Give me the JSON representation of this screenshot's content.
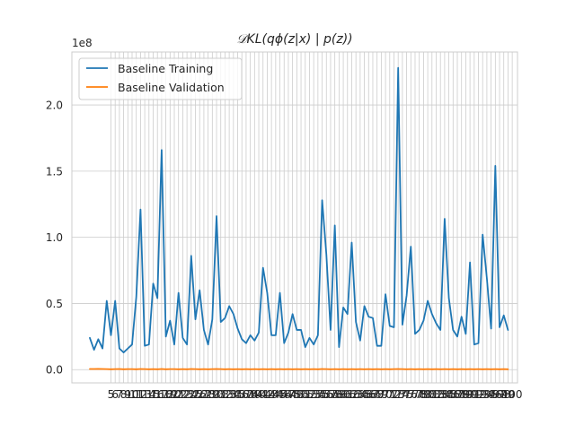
{
  "chart_data": {
    "type": "line",
    "title": "𝒟KL(qϕ(z|x) | p(z))",
    "xlabel": "",
    "ylabel": "",
    "y_scale_label": "1e8",
    "grid": true,
    "legend_position": "upper-left",
    "ylim": [
      -10000000,
      240000000
    ],
    "xlim": [
      -4.25,
      101.25
    ],
    "yticks": [
      0,
      50000000,
      100000000,
      150000000,
      200000000
    ],
    "ytick_labels": [
      "0.0",
      "0.5",
      "1.0",
      "1.5",
      "2.0"
    ],
    "xticks": [
      5,
      6,
      7,
      8,
      9,
      10,
      11,
      12,
      13,
      14,
      15,
      16,
      17,
      18,
      19,
      20,
      21,
      22,
      23,
      24,
      25,
      26,
      27,
      28,
      29,
      30,
      31,
      32,
      33,
      34,
      35,
      36,
      37,
      38,
      39,
      40,
      41,
      42,
      43,
      44,
      45,
      46,
      47,
      48,
      49,
      50,
      51,
      52,
      53,
      54,
      55,
      56,
      57,
      58,
      59,
      60,
      61,
      62,
      63,
      64,
      65,
      66,
      67,
      68,
      69,
      70,
      71,
      72,
      73,
      74,
      75,
      76,
      77,
      78,
      79,
      80,
      81,
      82,
      83,
      84,
      85,
      86,
      87,
      88,
      89,
      90,
      91,
      92,
      93,
      94,
      95,
      96,
      97,
      98,
      99,
      100
    ],
    "x": [
      0,
      1,
      2,
      3,
      4,
      5,
      6,
      7,
      8,
      9,
      10,
      11,
      12,
      13,
      14,
      15,
      16,
      17,
      18,
      19,
      20,
      21,
      22,
      23,
      24,
      25,
      26,
      27,
      28,
      29,
      30,
      31,
      32,
      33,
      34,
      35,
      36,
      37,
      38,
      39,
      40,
      41,
      42,
      43,
      44,
      45,
      46,
      47,
      48,
      49,
      50,
      51,
      52,
      53,
      54,
      55,
      56,
      57,
      58,
      59,
      60,
      61,
      62,
      63,
      64,
      65,
      66,
      67,
      68,
      69,
      70,
      71,
      72,
      73,
      74,
      75,
      76,
      77,
      78,
      79,
      80,
      81,
      82,
      83,
      84,
      85,
      86,
      87,
      88,
      89,
      90,
      91,
      92,
      93,
      94,
      95,
      96,
      97,
      98,
      99
    ],
    "series": [
      {
        "name": "Baseline Training",
        "color": "#1f77b4",
        "values": [
          24000000,
          15000000,
          23000000,
          16000000,
          52000000,
          26000000,
          52000000,
          16000000,
          13000000,
          16000000,
          19000000,
          55000000,
          121000000,
          18000000,
          19000000,
          65000000,
          54000000,
          166000000,
          25000000,
          37000000,
          19000000,
          58000000,
          24000000,
          19000000,
          86000000,
          38000000,
          60000000,
          30000000,
          19000000,
          38000000,
          116000000,
          36000000,
          39000000,
          48000000,
          42000000,
          31000000,
          23000000,
          20000000,
          26000000,
          22000000,
          28000000,
          77000000,
          58000000,
          26000000,
          26000000,
          58000000,
          20000000,
          28000000,
          42000000,
          30000000,
          30000000,
          17000000,
          24000000,
          19000000,
          26000000,
          128000000,
          87000000,
          30000000,
          109000000,
          17000000,
          47000000,
          42000000,
          96000000,
          36000000,
          22000000,
          48000000,
          40000000,
          39000000,
          18000000,
          18000000,
          57000000,
          33000000,
          32000000,
          228000000,
          34000000,
          56000000,
          93000000,
          27000000,
          30000000,
          37000000,
          52000000,
          42000000,
          35000000,
          30000000,
          114000000,
          54000000,
          30000000,
          25000000,
          40000000,
          27000000,
          81000000,
          19000000,
          20000000,
          102000000,
          69000000,
          31000000,
          154000000,
          32000000,
          41000000,
          30000000
        ]
      },
      {
        "name": "Baseline Validation",
        "color": "#ff7f0e",
        "values": [
          500000,
          500000,
          600000,
          500000,
          400000,
          300000,
          400000,
          500000,
          300000,
          400000,
          400000,
          300000,
          500000,
          400000,
          300000,
          400000,
          300000,
          500000,
          300000,
          400000,
          400000,
          300000,
          400000,
          300000,
          500000,
          400000,
          300000,
          400000,
          300000,
          400000,
          500000,
          400000,
          300000,
          400000,
          300000,
          400000,
          300000,
          400000,
          300000,
          400000,
          300000,
          400000,
          300000,
          400000,
          300000,
          400000,
          300000,
          400000,
          300000,
          400000,
          300000,
          400000,
          300000,
          400000,
          300000,
          500000,
          400000,
          300000,
          400000,
          300000,
          400000,
          300000,
          400000,
          300000,
          400000,
          300000,
          400000,
          300000,
          400000,
          300000,
          400000,
          300000,
          400000,
          500000,
          400000,
          300000,
          400000,
          300000,
          400000,
          300000,
          400000,
          300000,
          400000,
          300000,
          400000,
          300000,
          400000,
          300000,
          400000,
          300000,
          400000,
          300000,
          400000,
          300000,
          400000,
          300000,
          400000,
          300000,
          400000,
          300000
        ]
      }
    ]
  }
}
